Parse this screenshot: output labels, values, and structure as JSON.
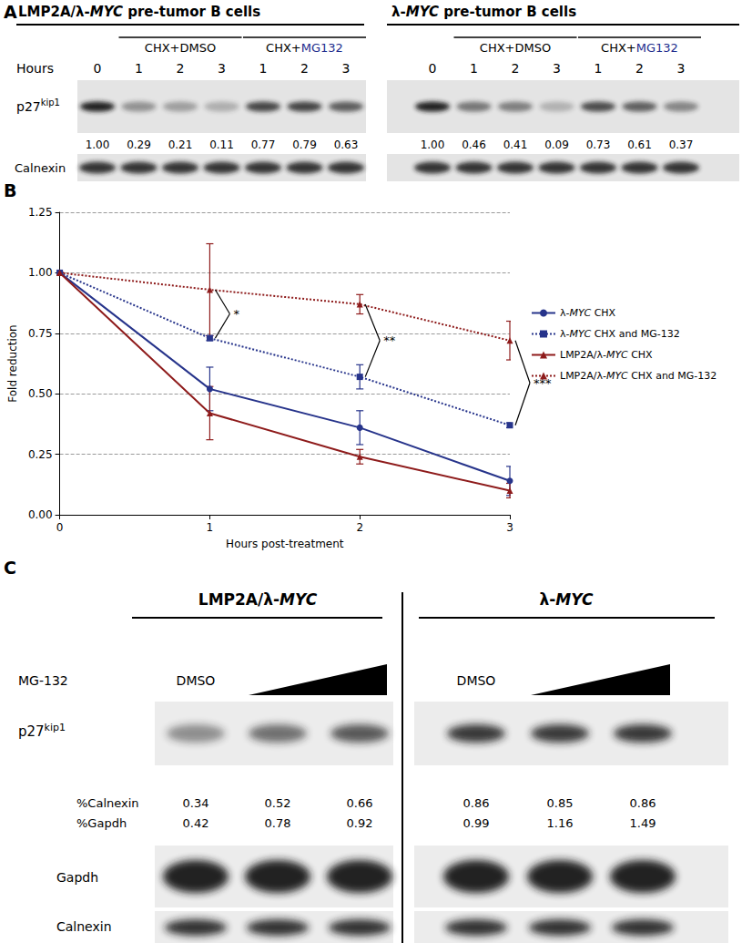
{
  "italic": "MYC",
  "panel_a": {
    "letter": "A",
    "hours_label": "Hours",
    "protein": {
      "base": "p27",
      "sup": "kip1"
    },
    "loading_control": "Calnexin",
    "groups": [
      {
        "title": "LMP2A/λ-MYC pre-tumor B cells",
        "treatments": [
          {
            "text": [
              "CHX+",
              "DMSO"
            ]
          },
          {
            "text": [
              "CHX+",
              "MG132"
            ],
            "color": "#1c2b8c"
          }
        ],
        "hours": [
          0,
          1,
          2,
          3,
          1,
          2,
          3
        ],
        "p27_levels": [
          "1.00",
          "0.29",
          "0.21",
          "0.11",
          "0.77",
          "0.79",
          "0.63"
        ]
      },
      {
        "title": "λ-MYC pre-tumor B cells",
        "treatments": [
          {
            "text": [
              "CHX+",
              "DMSO"
            ]
          },
          {
            "text": [
              "CHX+",
              "MG132"
            ],
            "color": "#1c2b8c"
          }
        ],
        "hours": [
          0,
          1,
          2,
          3,
          1,
          2,
          3
        ],
        "p27_levels": [
          "1.00",
          "0.46",
          "0.41",
          "0.09",
          "0.73",
          "0.61",
          "0.37"
        ]
      }
    ]
  },
  "chart_data": {
    "type": "line",
    "letter": "B",
    "x_label": "Hours post-treatment",
    "y_label": "Fold reduction",
    "x": [
      0,
      1,
      2,
      3
    ],
    "xlim": [
      0,
      3
    ],
    "xticks": [
      0,
      1,
      2,
      3
    ],
    "ylim": [
      0,
      1.25
    ],
    "yticks": [
      {
        "value": 0,
        "label": "0.00"
      },
      {
        "value": 0.25,
        "label": "0.25"
      },
      {
        "value": 0.5,
        "label": "0.50"
      },
      {
        "value": 0.75,
        "label": "0.75"
      },
      {
        "value": 1,
        "label": "1.00"
      },
      {
        "value": 1.25,
        "label": "1.25"
      }
    ],
    "grid": true,
    "legend": "right",
    "series": [
      {
        "name": "λ-MYC CHX",
        "color": "#27348b",
        "line_style": "solid",
        "marker": "circle",
        "values": [
          1,
          0.52,
          0.36,
          0.14
        ],
        "errors": [
          0,
          0.09,
          0.07,
          0.06
        ]
      },
      {
        "name": "λ-MYC CHX and MG-132",
        "color": "#27348b",
        "line_style": "dotted",
        "marker": "rect",
        "values": [
          1,
          0.73,
          0.57,
          0.37
        ],
        "errors": [
          0,
          0.01,
          0.05,
          0.01
        ]
      },
      {
        "name": "LMP2A/λ-MYC CHX",
        "color": "#8e1b1b",
        "line_style": "solid",
        "marker": "triangle",
        "values": [
          1,
          0.42,
          0.24,
          0.1
        ],
        "errors": [
          0,
          0.11,
          0.03,
          0.03
        ]
      },
      {
        "name": "LMP2A/λ-MYC CHX and MG-132",
        "color": "#8e1b1b",
        "line_style": "dotted",
        "marker": "triangle",
        "values": [
          1,
          0.93,
          0.87,
          0.72
        ],
        "errors": [
          0,
          0.19,
          0.04,
          0.08
        ]
      }
    ],
    "annotations": [
      {
        "text": "*",
        "x": 1,
        "between": [
          "λ-MYC CHX and MG-132",
          "LMP2A/λ-MYC CHX and MG-132"
        ]
      },
      {
        "text": "**",
        "x": 2,
        "between": [
          "λ-MYC CHX and MG-132",
          "LMP2A/λ-MYC CHX and MG-132"
        ]
      },
      {
        "text": "***",
        "x": 3,
        "between": [
          "λ-MYC CHX and MG-132",
          "LMP2A/λ-MYC CHX and MG-132"
        ]
      }
    ]
  },
  "panel_c": {
    "letter": "C",
    "treatment": "MG-132",
    "protein": {
      "base": "p27",
      "sup": "kip1"
    },
    "row_labels": {
      "pct_calnexin": "%Calnexin",
      "pct_gapdh": "%Gapdh"
    },
    "gapdh": "Gapdh",
    "calnexin": "Calnexin",
    "groups": [
      {
        "title": "LMP2A/λ-MYC",
        "control": "DMSO",
        "pct_calnexin": [
          "0.34",
          "0.52",
          "0.66"
        ],
        "pct_gapdh": [
          "0.42",
          "0.78",
          "0.92"
        ]
      },
      {
        "title": "λ-MYC",
        "control": "DMSO",
        "pct_calnexin": [
          "0.86",
          "0.85",
          "0.86"
        ],
        "pct_gapdh": [
          "0.99",
          "1.16",
          "1.49"
        ]
      }
    ]
  }
}
